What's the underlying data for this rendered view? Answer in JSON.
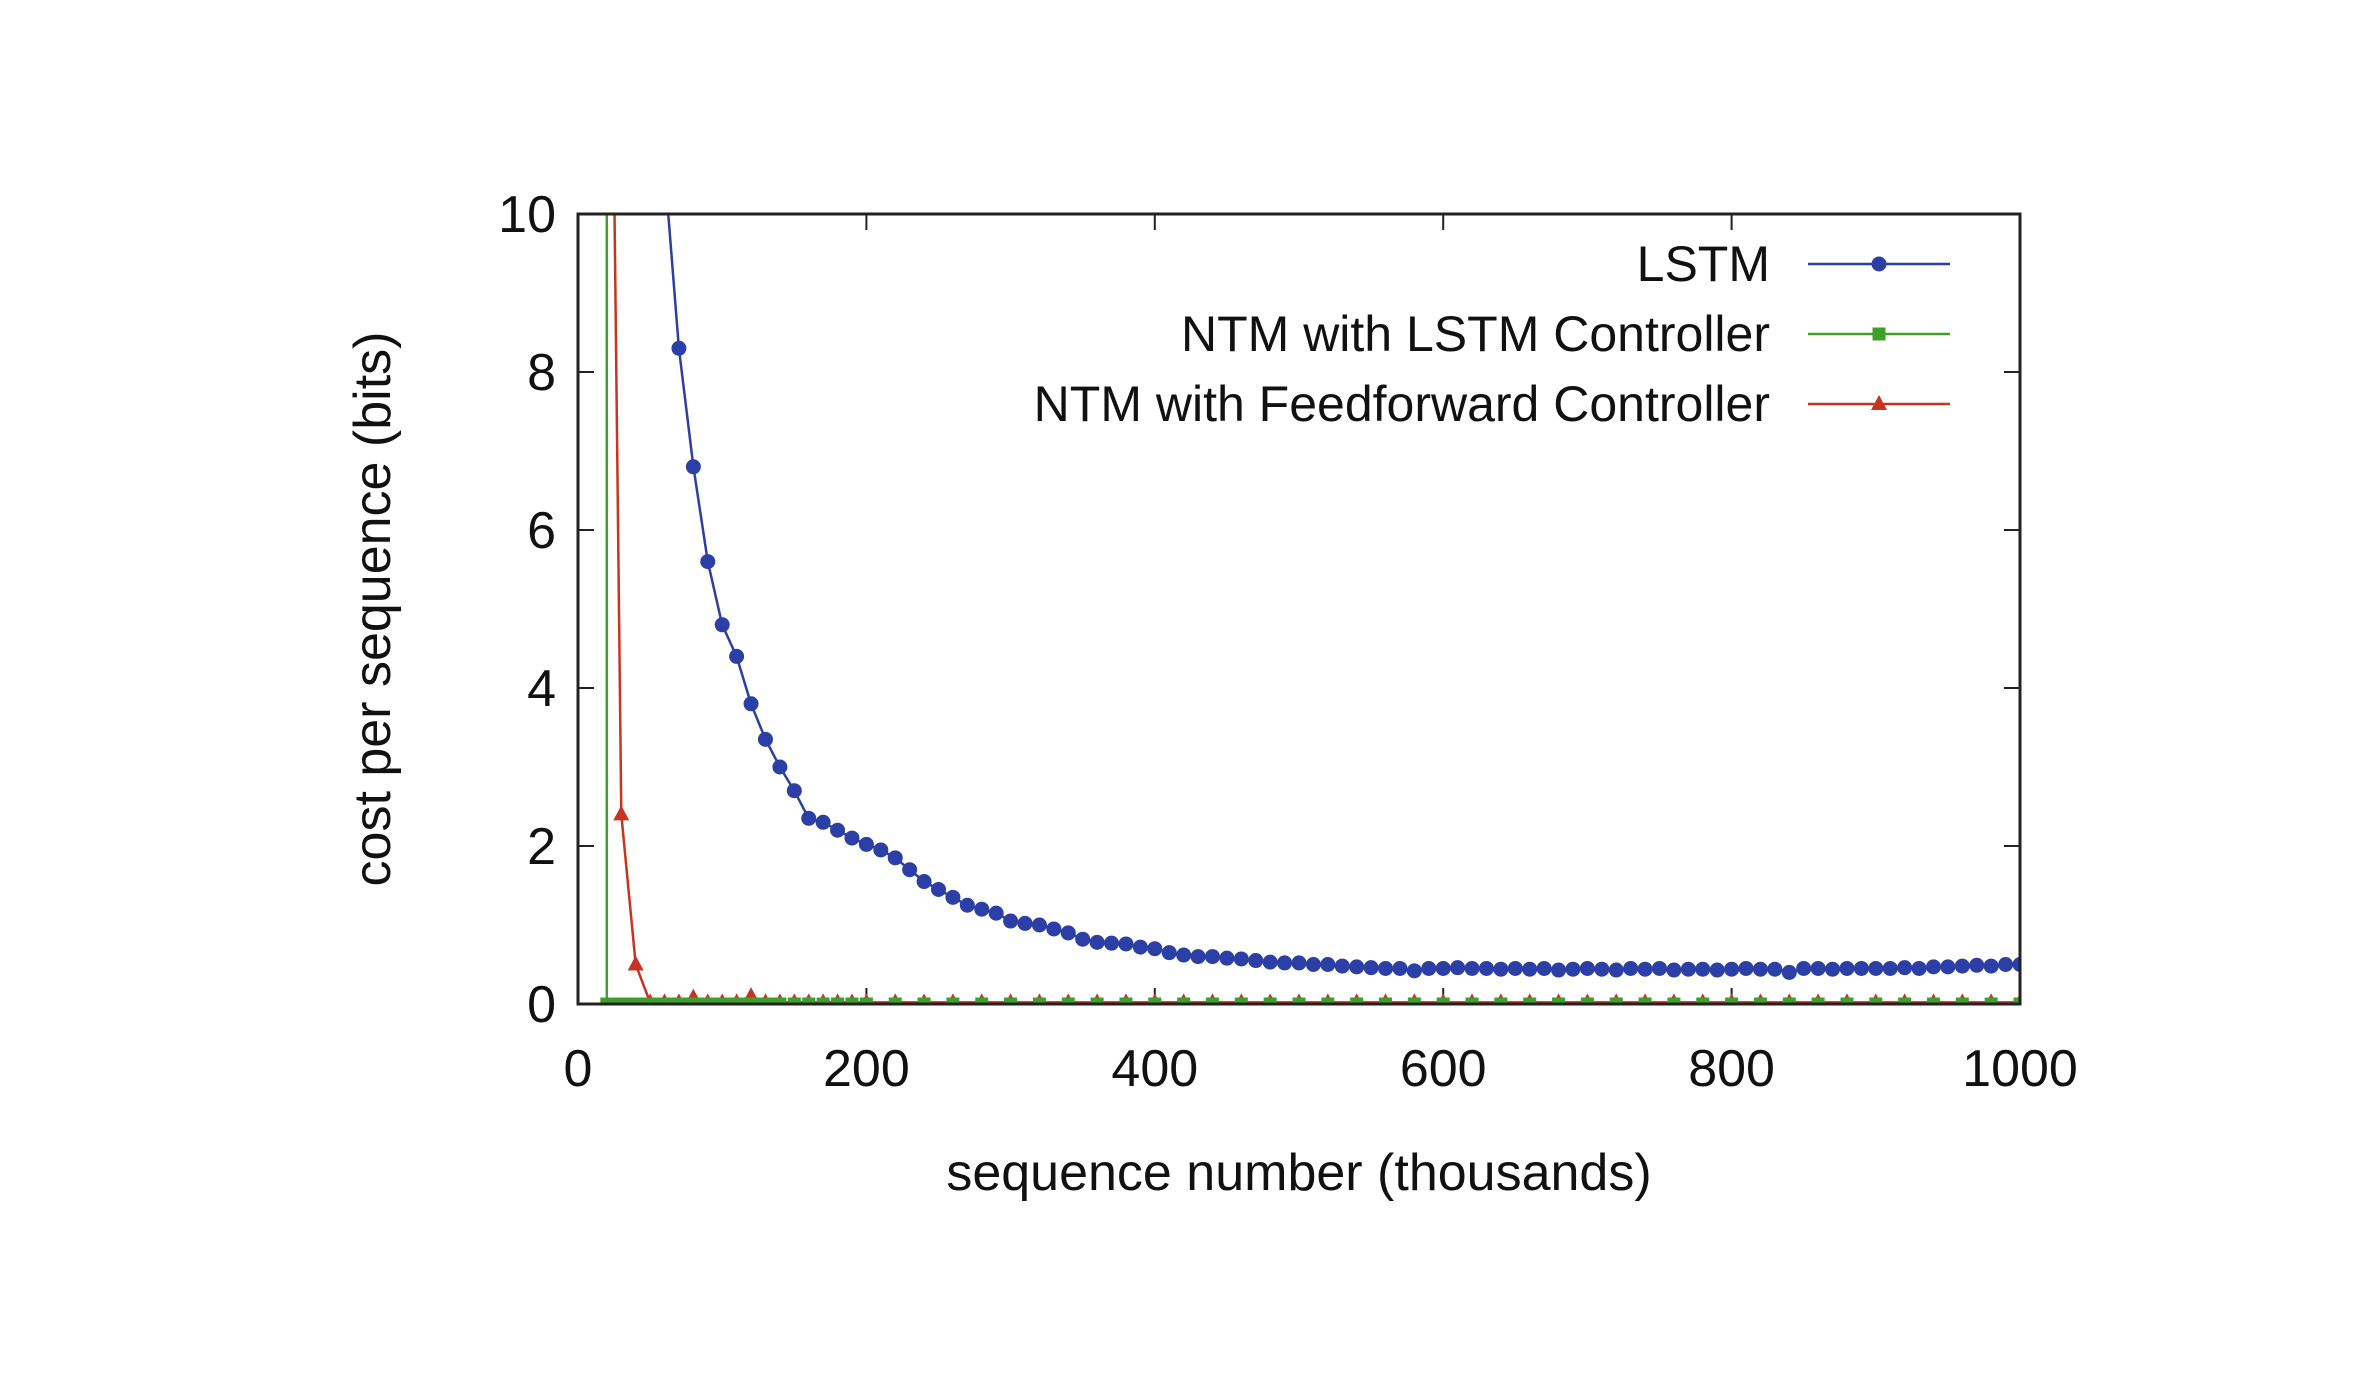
{
  "chart_data": {
    "type": "line",
    "title": "",
    "xlabel": "sequence number (thousands)",
    "ylabel": "cost per sequence (bits)",
    "xlim": [
      0,
      1000
    ],
    "ylim": [
      0,
      10
    ],
    "x_ticks": [
      "0",
      "200",
      "400",
      "600",
      "800",
      "1000"
    ],
    "y_ticks": [
      "0",
      "2",
      "4",
      "6",
      "8",
      "10"
    ],
    "x_tick_values": [
      0,
      200,
      400,
      600,
      800,
      1000
    ],
    "y_tick_values": [
      0,
      2,
      4,
      6,
      8,
      10
    ],
    "grid": false,
    "legend_position": "top-right",
    "series": [
      {
        "name": "LSTM",
        "color": "#2b3fa6",
        "marker": "circle",
        "x": [
          60,
          70,
          80,
          90,
          100,
          110,
          120,
          130,
          140,
          150,
          160,
          170,
          180,
          190,
          200,
          210,
          220,
          230,
          240,
          250,
          260,
          270,
          280,
          290,
          300,
          310,
          320,
          330,
          340,
          350,
          360,
          370,
          380,
          390,
          400,
          410,
          420,
          430,
          440,
          450,
          460,
          470,
          480,
          490,
          500,
          510,
          520,
          530,
          540,
          550,
          560,
          570,
          580,
          590,
          600,
          610,
          620,
          630,
          640,
          650,
          660,
          670,
          680,
          690,
          700,
          710,
          720,
          730,
          740,
          750,
          760,
          770,
          780,
          790,
          800,
          810,
          820,
          830,
          840,
          850,
          860,
          870,
          880,
          890,
          900,
          910,
          920,
          930,
          940,
          950,
          960,
          970,
          980,
          990,
          1000
        ],
        "y": [
          10.6,
          8.3,
          6.8,
          5.6,
          4.8,
          4.4,
          3.8,
          3.35,
          3.0,
          2.7,
          2.35,
          2.3,
          2.2,
          2.1,
          2.02,
          1.95,
          1.85,
          1.7,
          1.55,
          1.45,
          1.35,
          1.25,
          1.2,
          1.15,
          1.05,
          1.02,
          1.0,
          0.95,
          0.9,
          0.82,
          0.78,
          0.77,
          0.76,
          0.72,
          0.7,
          0.65,
          0.62,
          0.6,
          0.6,
          0.58,
          0.57,
          0.55,
          0.53,
          0.52,
          0.52,
          0.5,
          0.5,
          0.48,
          0.47,
          0.46,
          0.45,
          0.45,
          0.42,
          0.45,
          0.45,
          0.46,
          0.45,
          0.45,
          0.44,
          0.45,
          0.44,
          0.45,
          0.43,
          0.44,
          0.45,
          0.44,
          0.43,
          0.45,
          0.44,
          0.45,
          0.43,
          0.44,
          0.44,
          0.43,
          0.44,
          0.45,
          0.44,
          0.44,
          0.4,
          0.45,
          0.45,
          0.44,
          0.45,
          0.45,
          0.45,
          0.45,
          0.46,
          0.45,
          0.47,
          0.47,
          0.48,
          0.49,
          0.48,
          0.5,
          0.5
        ]
      },
      {
        "name": "NTM with LSTM Controller",
        "color": "#3fa02a",
        "marker": "square",
        "x": [
          20,
          20,
          25,
          30,
          35,
          40,
          45,
          50,
          55,
          60,
          65,
          70,
          75,
          80,
          85,
          90,
          95,
          100,
          105,
          110,
          115,
          120,
          125,
          130,
          135,
          140,
          150,
          160,
          170,
          180,
          190,
          200,
          220,
          240,
          260,
          280,
          300,
          320,
          340,
          360,
          380,
          400,
          420,
          440,
          460,
          480,
          500,
          520,
          540,
          560,
          580,
          600,
          620,
          640,
          660,
          680,
          700,
          720,
          740,
          760,
          780,
          800,
          820,
          840,
          860,
          880,
          900,
          920,
          940,
          960,
          980,
          1000
        ],
        "y": [
          10.6,
          0.0,
          0.0,
          0.0,
          0.0,
          0.0,
          0.0,
          0.0,
          0.0,
          0.0,
          0.0,
          0.0,
          0.0,
          0.0,
          0.0,
          0.0,
          0.0,
          0.0,
          0.0,
          0.0,
          0.0,
          0.0,
          0.0,
          0.0,
          0.0,
          0.0,
          0.0,
          0.0,
          0.0,
          0.0,
          0.0,
          0.0,
          0.0,
          0.0,
          0.0,
          0.0,
          0.0,
          0.0,
          0.0,
          0.0,
          0.0,
          0.0,
          0.0,
          0.0,
          0.0,
          0.0,
          0.0,
          0.0,
          0.0,
          0.0,
          0.0,
          0.0,
          0.0,
          0.0,
          0.0,
          0.0,
          0.0,
          0.0,
          0.0,
          0.0,
          0.0,
          0.0,
          0.0,
          0.0,
          0.0,
          0.0,
          0.0,
          0.0,
          0.0,
          0.0,
          0.0,
          0.0
        ]
      },
      {
        "name": "NTM with Feedforward Controller",
        "color": "#c8341f",
        "marker": "triangle",
        "x": [
          25,
          30,
          40,
          50,
          60,
          70,
          80,
          90,
          100,
          110,
          120,
          130,
          140,
          150,
          160,
          170,
          180,
          190,
          200,
          220,
          240,
          260,
          280,
          300,
          320,
          340,
          360,
          380,
          400,
          420,
          440,
          460,
          480,
          500,
          520,
          540,
          560,
          580,
          600,
          620,
          640,
          660,
          680,
          700,
          720,
          740,
          760,
          780,
          800,
          820,
          840,
          860,
          880,
          900,
          920,
          940,
          960,
          980,
          1000
        ],
        "y": [
          10.6,
          2.4,
          0.5,
          0.02,
          0.02,
          0.02,
          0.08,
          0.02,
          0.02,
          0.02,
          0.1,
          0.02,
          0.02,
          0.02,
          0.02,
          0.02,
          0.02,
          0.02,
          0.02,
          0.02,
          0.02,
          0.02,
          0.02,
          0.02,
          0.02,
          0.02,
          0.02,
          0.02,
          0.02,
          0.02,
          0.02,
          0.02,
          0.02,
          0.02,
          0.02,
          0.02,
          0.02,
          0.02,
          0.02,
          0.02,
          0.02,
          0.02,
          0.02,
          0.02,
          0.02,
          0.02,
          0.02,
          0.02,
          0.02,
          0.02,
          0.02,
          0.02,
          0.02,
          0.02,
          0.02,
          0.02,
          0.02,
          0.02,
          0.02
        ]
      }
    ]
  }
}
